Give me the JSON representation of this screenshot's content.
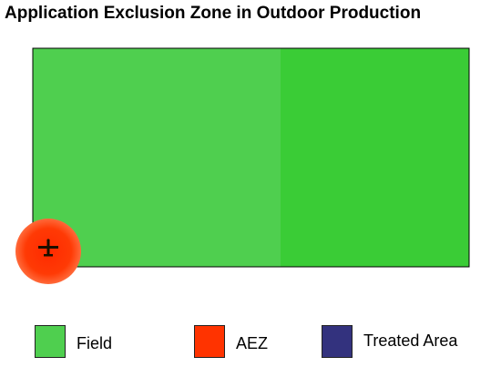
{
  "title": "Application Exclusion Zone in Outdoor Production",
  "colors": {
    "field": "#4fcf4f",
    "field_right": "#3acc36",
    "aez": "#ff3300",
    "aez_glow": "#ff6a3a",
    "treated_area": "#33327e",
    "border": "#000000"
  },
  "icons": {
    "aircraft": "airplane-icon"
  },
  "legend": [
    {
      "label": "Field",
      "color": "#4fcf4f"
    },
    {
      "label": "AEZ",
      "color": "#ff3300"
    },
    {
      "label": "Treated Area",
      "color": "#33327e"
    }
  ]
}
